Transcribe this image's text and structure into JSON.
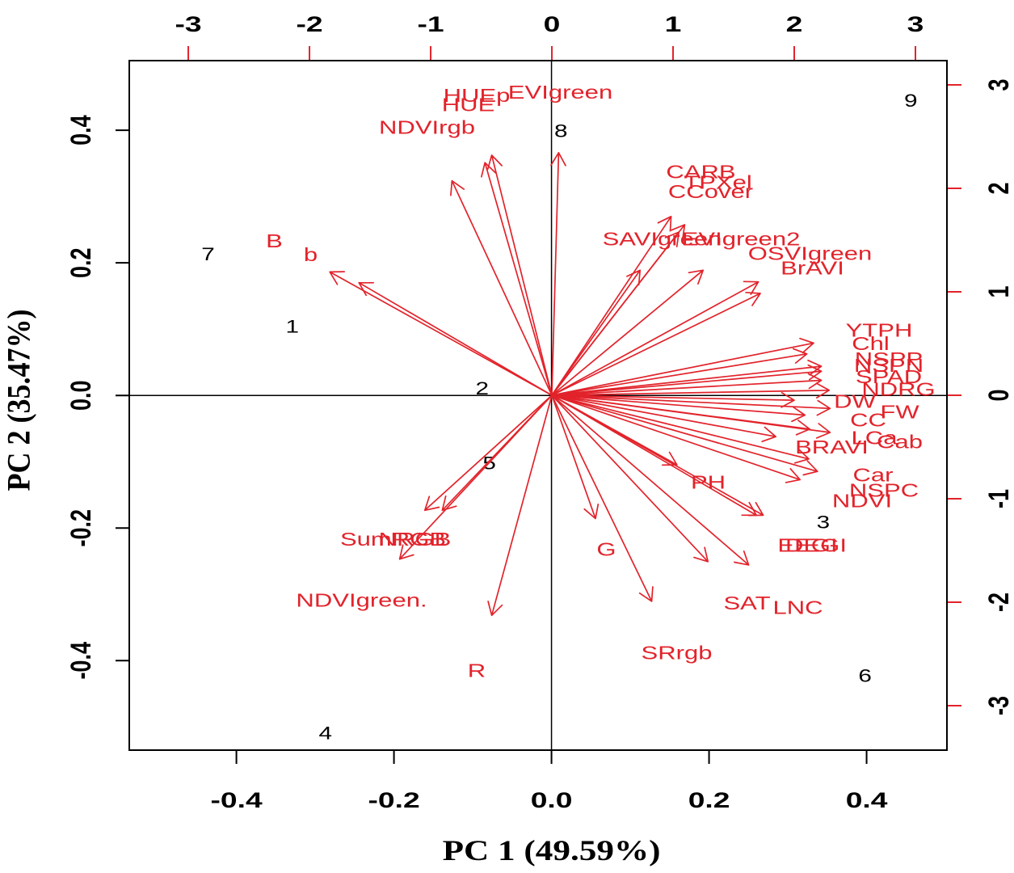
{
  "chart_data": {
    "type": "scatter",
    "subtype": "pca-biplot",
    "title": "",
    "xlabel": "PC 1 (49.59%)",
    "ylabel": "PC 2 (35.47%)",
    "xlim": [
      -0.536,
      0.502
    ],
    "ylim": [
      -0.535,
      0.505
    ],
    "x_ticks": [
      -0.4,
      -0.2,
      0.0,
      0.2,
      0.4
    ],
    "x_tick_labels": [
      "-0.4",
      "-0.2",
      "0.0",
      "0.2",
      "0.4"
    ],
    "y_ticks": [
      0.4,
      0.2,
      0.0,
      -0.2,
      -0.4
    ],
    "y_tick_labels": [
      "0.4",
      "0.2",
      "0.0",
      "-0.2",
      "-0.4"
    ],
    "secondary_xlim": [
      -3.487,
      3.26
    ],
    "secondary_ylim": [
      -3.43,
      3.234
    ],
    "secondary_x_ticks": [
      -3,
      -2,
      -1,
      0,
      1,
      2,
      3
    ],
    "secondary_x_tick_labels": [
      "-3",
      "-2",
      "-1",
      "0",
      "1",
      "2",
      "3"
    ],
    "secondary_y_ticks": [
      3,
      2,
      1,
      0,
      -1,
      -2,
      -3
    ],
    "secondary_y_tick_labels": [
      "3",
      "2",
      "1",
      "0",
      "-1",
      "-2",
      "-3"
    ],
    "grid": false,
    "observations": [
      {
        "label": "1",
        "x": -0.329,
        "y": 0.104
      },
      {
        "label": "2",
        "x": -0.088,
        "y": 0.011
      },
      {
        "label": "3",
        "x": 0.345,
        "y": -0.191
      },
      {
        "label": "4",
        "x": -0.287,
        "y": -0.509
      },
      {
        "label": "5",
        "x": -0.079,
        "y": -0.102
      },
      {
        "label": "6",
        "x": 0.398,
        "y": -0.423
      },
      {
        "label": "7",
        "x": -0.436,
        "y": 0.213
      },
      {
        "label": "8",
        "x": 0.012,
        "y": 0.399
      },
      {
        "label": "9",
        "x": 0.456,
        "y": 0.445
      }
    ],
    "variables": [
      {
        "name": "HUEp",
        "x": -0.62,
        "y": 2.9
      },
      {
        "name": "HUE",
        "x": -0.69,
        "y": 2.81
      },
      {
        "name": "EVIgreen",
        "x": 0.07,
        "y": 2.93
      },
      {
        "name": "NDVIrgb",
        "x": -1.03,
        "y": 2.59
      },
      {
        "name": "B",
        "x": -2.29,
        "y": 1.49
      },
      {
        "name": "b",
        "x": -1.99,
        "y": 1.36
      },
      {
        "name": "CARB",
        "x": 1.23,
        "y": 2.16
      },
      {
        "name": "TPXel",
        "x": 1.37,
        "y": 2.06
      },
      {
        "name": "CCover",
        "x": 1.31,
        "y": 1.97
      },
      {
        "name": "SAVIgreen",
        "x": 0.91,
        "y": 1.51
      },
      {
        "name": "EVIgreen2",
        "x": 1.56,
        "y": 1.51
      },
      {
        "name": "OSVIgreen",
        "x": 2.13,
        "y": 1.37
      },
      {
        "name": "BrAVI",
        "x": 2.15,
        "y": 1.23
      },
      {
        "name": "YTPH",
        "x": 2.7,
        "y": 0.63
      },
      {
        "name": "Chl",
        "x": 2.63,
        "y": 0.5
      },
      {
        "name": "NSPP",
        "x": 2.78,
        "y": 0.35
      },
      {
        "name": "NSPN",
        "x": 2.78,
        "y": 0.29
      },
      {
        "name": "SPAD",
        "x": 2.78,
        "y": 0.18
      },
      {
        "name": "NDRG",
        "x": 2.86,
        "y": 0.06
      },
      {
        "name": "DW",
        "x": 2.5,
        "y": -0.06
      },
      {
        "name": "FW",
        "x": 2.87,
        "y": -0.16
      },
      {
        "name": "CC",
        "x": 2.61,
        "y": -0.24
      },
      {
        "name": "LCa",
        "x": 2.66,
        "y": -0.41
      },
      {
        "name": "Cab",
        "x": 2.87,
        "y": -0.45
      },
      {
        "name": "BRAVI",
        "x": 2.31,
        "y": -0.5
      },
      {
        "name": "Car",
        "x": 2.65,
        "y": -0.77
      },
      {
        "name": "NSPC",
        "x": 2.74,
        "y": -0.92
      },
      {
        "name": "NDVI",
        "x": 2.56,
        "y": -1.02
      },
      {
        "name": "PH",
        "x": 1.29,
        "y": -0.84
      },
      {
        "name": "EEGI",
        "x": 2.11,
        "y": -1.45
      },
      {
        "name": "DEGI",
        "x": 2.18,
        "y": -1.45
      },
      {
        "name": "SAT",
        "x": 1.61,
        "y": -2.01
      },
      {
        "name": "LNC",
        "x": 2.03,
        "y": -2.05
      },
      {
        "name": "G",
        "x": 0.45,
        "y": -1.49
      },
      {
        "name": "SRrgb",
        "x": 1.03,
        "y": -2.49
      },
      {
        "name": "R",
        "x": -0.62,
        "y": -2.66
      },
      {
        "name": "SumRGB",
        "x": -1.31,
        "y": -1.39
      },
      {
        "name": "NRGB",
        "x": -1.13,
        "y": -1.39
      },
      {
        "name": "NDVIgreen.",
        "x": -1.57,
        "y": -1.98
      }
    ],
    "colors": {
      "observations": "#000000",
      "variables": "#e2232b",
      "axes": "#000000"
    }
  }
}
